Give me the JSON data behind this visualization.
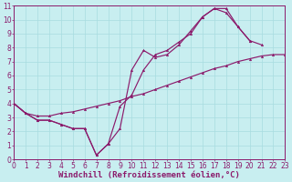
{
  "xlabel": "Windchill (Refroidissement éolien,°C)",
  "bg_color": "#c8eef0",
  "grid_color": "#a8dce0",
  "line_color": "#8b1a6b",
  "xlim": [
    0,
    23
  ],
  "ylim": [
    0,
    11
  ],
  "xticks": [
    0,
    1,
    2,
    3,
    4,
    5,
    6,
    7,
    8,
    9,
    10,
    11,
    12,
    13,
    14,
    15,
    16,
    17,
    18,
    19,
    20,
    21,
    22,
    23
  ],
  "yticks": [
    0,
    1,
    2,
    3,
    4,
    5,
    6,
    7,
    8,
    9,
    10,
    11
  ],
  "curve1_x": [
    0,
    1,
    2,
    3,
    4,
    5,
    6,
    7,
    8,
    9,
    10,
    11,
    12,
    13,
    14,
    15,
    16,
    17,
    18,
    19,
    20,
    21,
    22,
    23
  ],
  "curve1_y": [
    4.0,
    3.3,
    2.8,
    2.8,
    2.5,
    2.2,
    2.2,
    0.3,
    1.1,
    2.2,
    6.4,
    7.8,
    7.3,
    7.5,
    8.2,
    9.2,
    10.2,
    10.8,
    10.8,
    9.5,
    8.5,
    8.2,
    null,
    null
  ],
  "curve2_x": [
    0,
    1,
    2,
    3,
    4,
    5,
    6,
    7,
    8,
    9,
    10,
    11,
    12,
    13,
    14,
    15,
    16,
    17,
    18,
    19,
    20,
    21,
    22,
    23
  ],
  "curve2_y": [
    4.0,
    3.3,
    2.8,
    2.8,
    2.5,
    2.2,
    2.2,
    0.3,
    1.1,
    3.8,
    4.6,
    6.4,
    7.5,
    7.8,
    8.4,
    9.0,
    10.2,
    10.8,
    10.5,
    9.5,
    8.5,
    null,
    null,
    null
  ],
  "curve3_x": [
    0,
    1,
    2,
    3,
    4,
    5,
    6,
    7,
    8,
    9,
    10,
    11,
    12,
    13,
    14,
    15,
    16,
    17,
    18,
    19,
    20,
    21,
    22,
    23
  ],
  "curve3_y": [
    4.0,
    3.3,
    3.1,
    3.1,
    3.3,
    3.4,
    3.6,
    3.8,
    4.0,
    4.2,
    4.5,
    4.7,
    5.0,
    5.3,
    5.6,
    5.9,
    6.2,
    6.5,
    6.7,
    7.0,
    7.2,
    7.4,
    7.5,
    7.5
  ],
  "xlabel_fontsize": 6.5,
  "tick_fontsize": 5.5,
  "marker_size": 2.0,
  "line_width": 0.85
}
